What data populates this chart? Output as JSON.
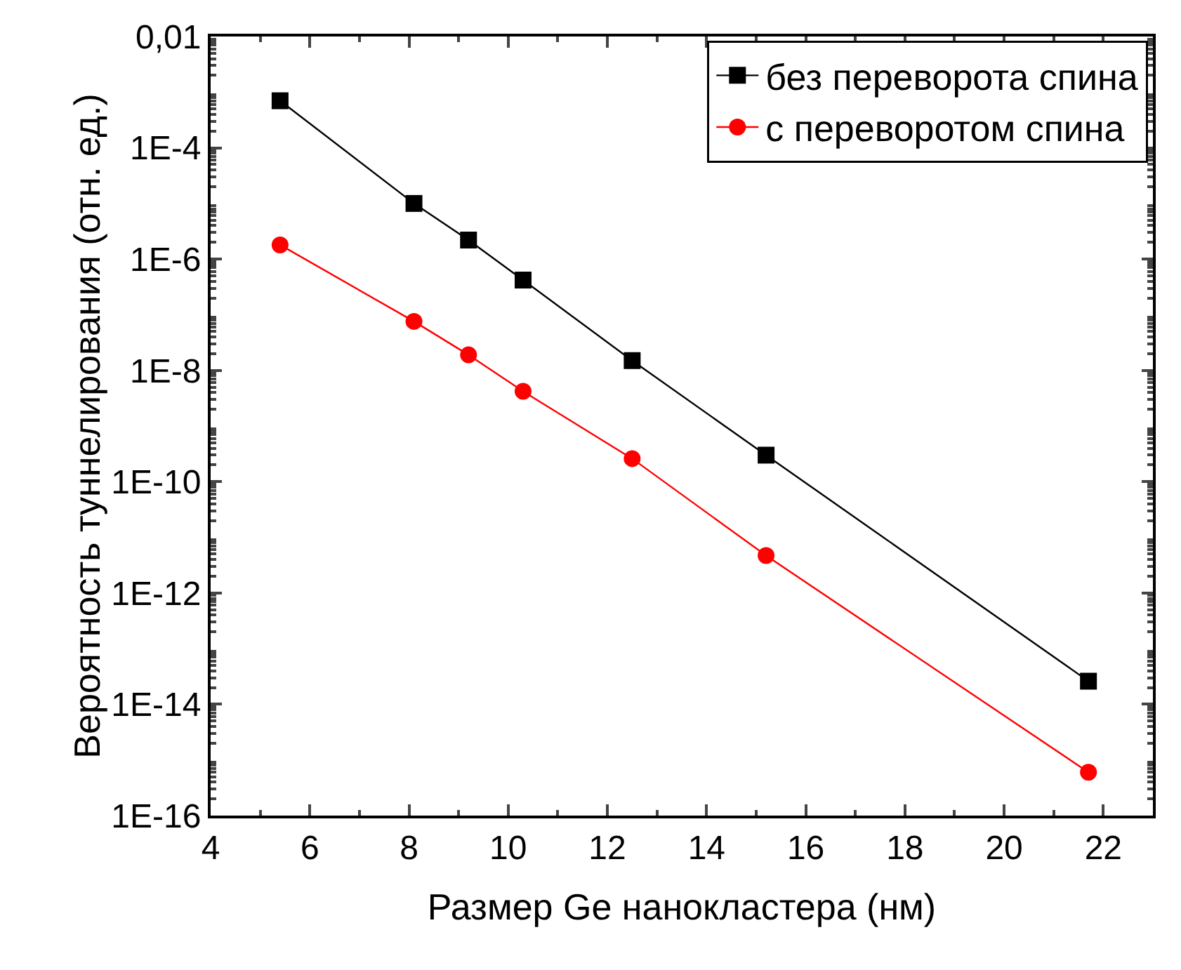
{
  "chart_data": {
    "type": "line",
    "xlabel": "Размер Ge нанокластера (нм)",
    "ylabel": "Вероятность туннелирования (отн. ед.)",
    "x": [
      5.4,
      8.1,
      9.2,
      10.3,
      12.5,
      15.2,
      21.7
    ],
    "series": [
      {
        "name": "без переворота спина",
        "color": "#000000",
        "marker": "square",
        "values": [
          0.0007,
          1e-05,
          2.2e-06,
          4.2e-07,
          1.5e-08,
          3e-10,
          2.6e-14
        ]
      },
      {
        "name": "с переворотом спина",
        "color": "#ff0000",
        "marker": "circle",
        "values": [
          1.8e-06,
          7.6e-08,
          1.9e-08,
          4.2e-09,
          2.6e-10,
          4.7e-12,
          6e-16
        ]
      }
    ],
    "log": "y",
    "xlim": [
      4,
      23
    ],
    "xticks": [
      4,
      6,
      8,
      10,
      12,
      14,
      16,
      18,
      20,
      22
    ],
    "ylim": [
      1e-16,
      0.01
    ],
    "yticks": [
      {
        "value": 0.01,
        "label": "0,01"
      },
      {
        "value": 0.0001,
        "label": "1E-4"
      },
      {
        "value": 1e-06,
        "label": "1E-6"
      },
      {
        "value": 1e-08,
        "label": "1E-8"
      },
      {
        "value": 1e-10,
        "label": "1E-10"
      },
      {
        "value": 1e-12,
        "label": "1E-12"
      },
      {
        "value": 1e-14,
        "label": "1E-14"
      },
      {
        "value": 1e-16,
        "label": "1E-16"
      }
    ],
    "grid": false,
    "legend": "top right",
    "line_style": "solid"
  }
}
